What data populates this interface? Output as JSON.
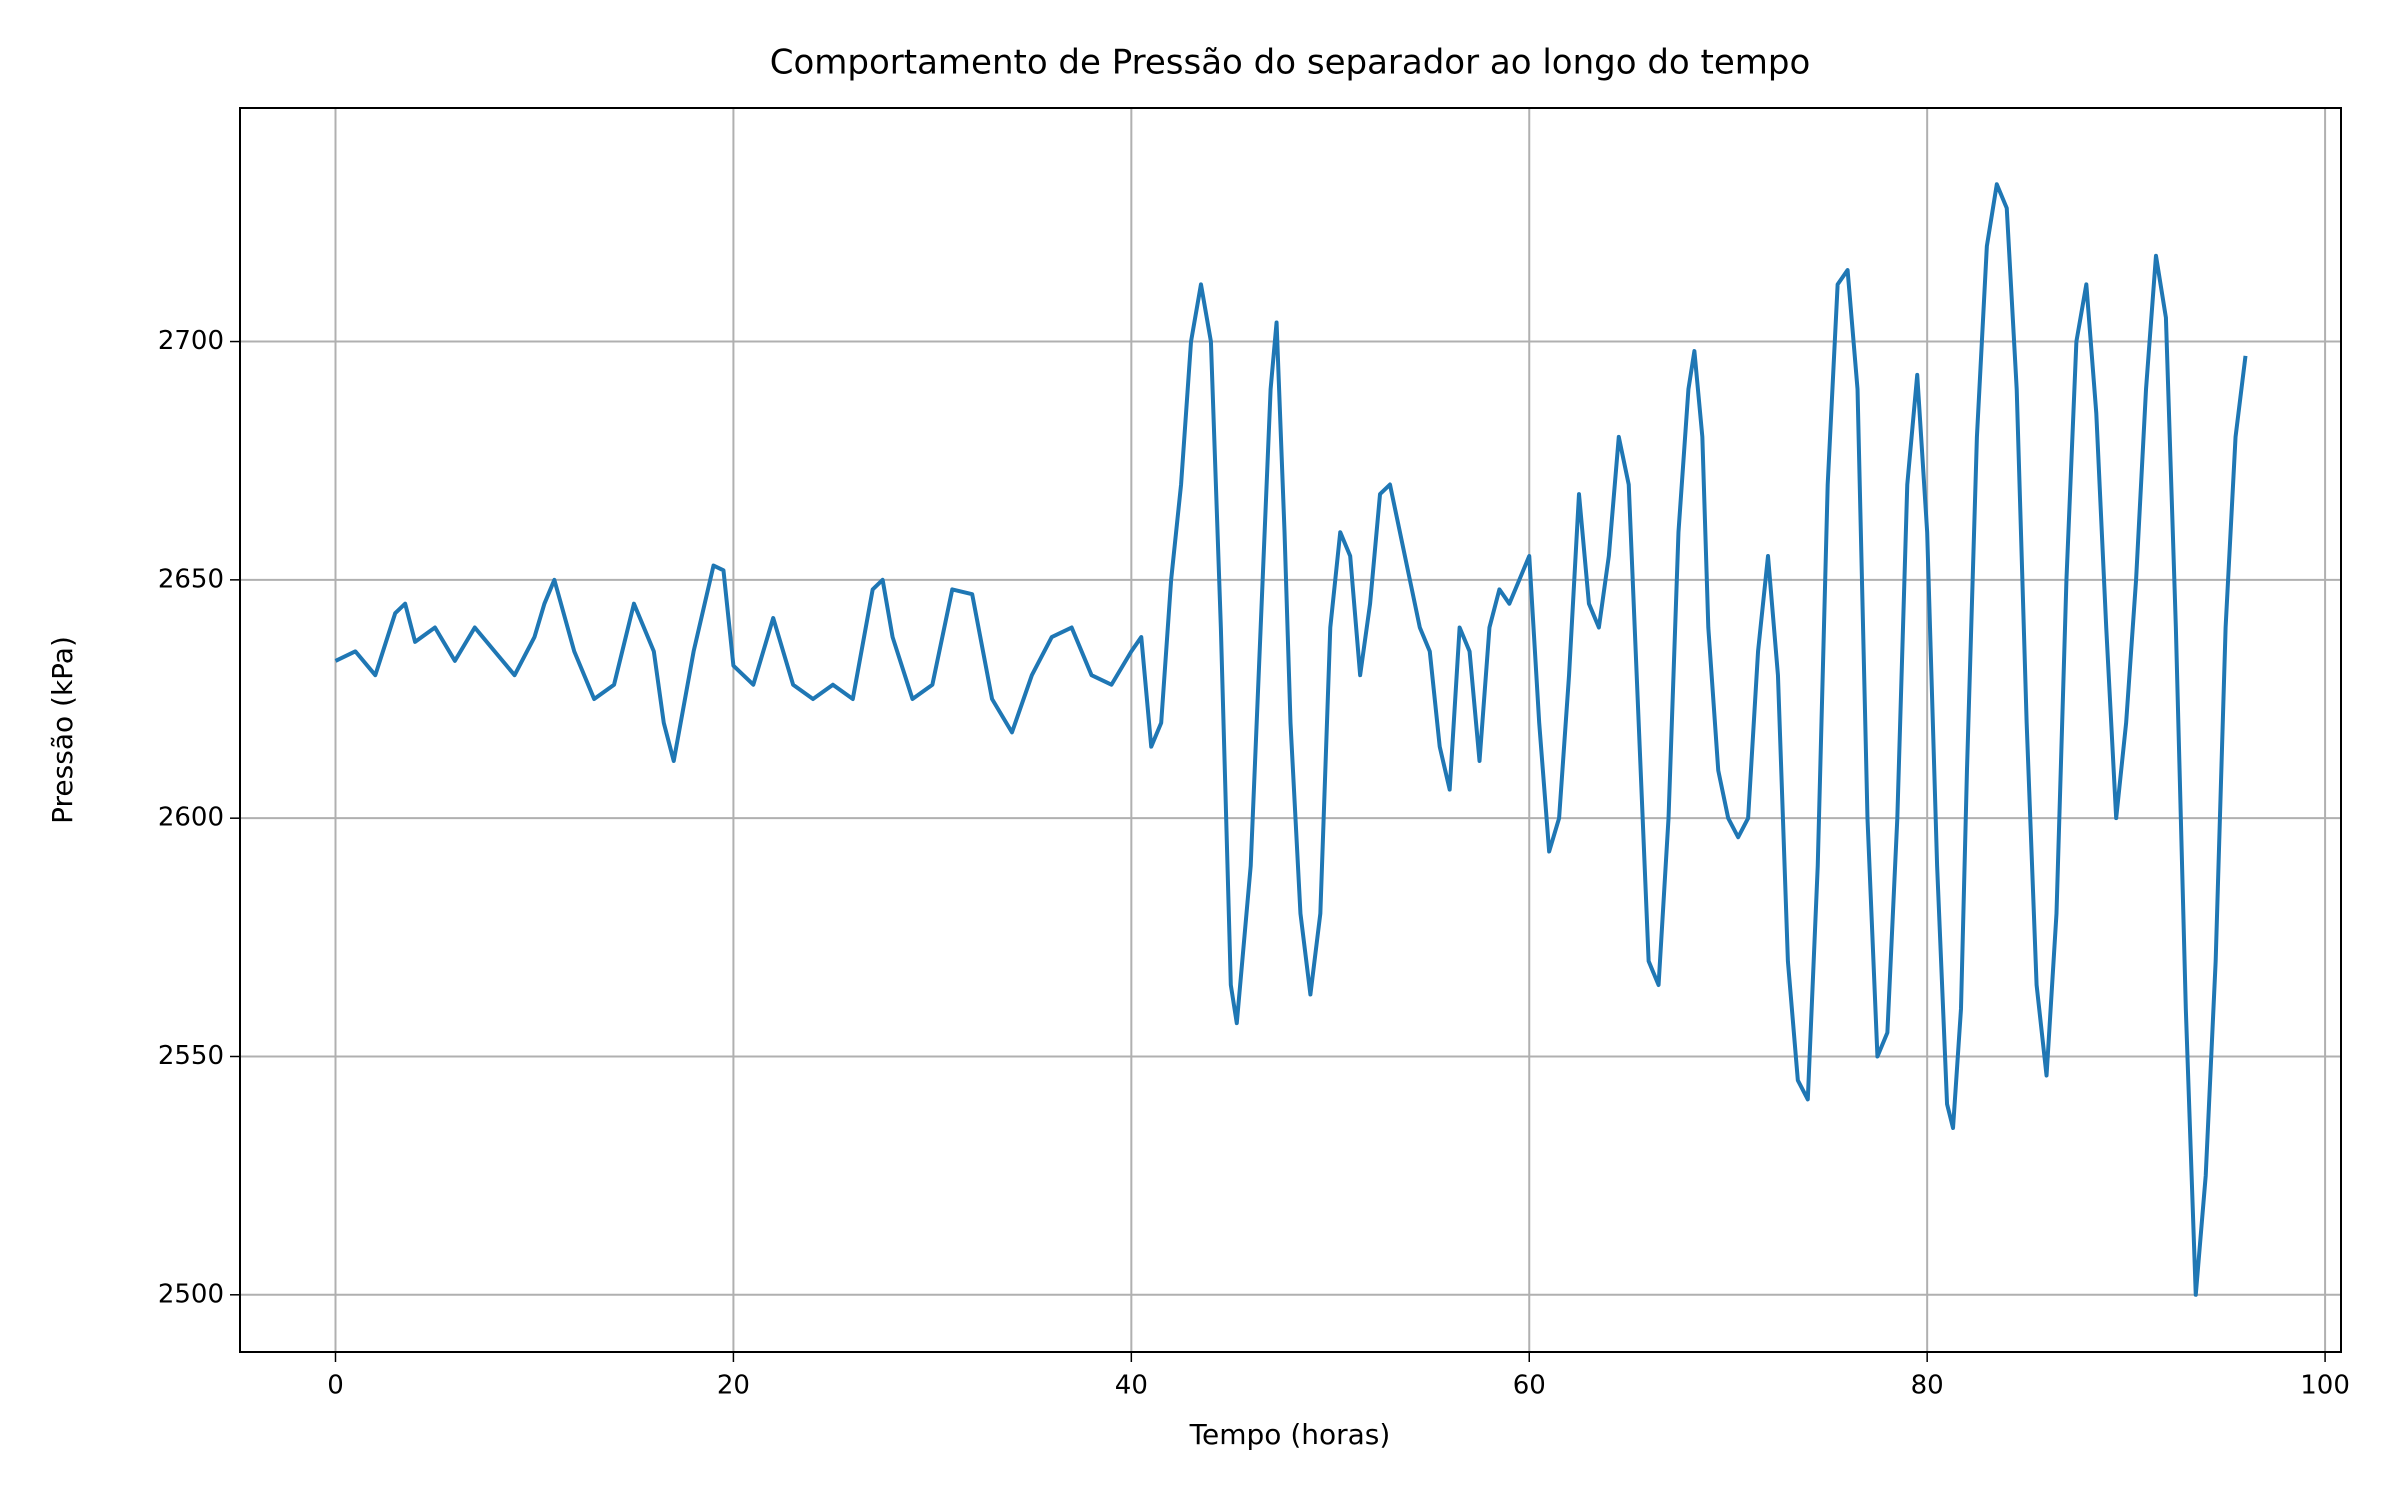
{
  "chart_data": {
    "type": "line",
    "title": "Comportamento de Pressão do separador ao longo do tempo",
    "x_label": "Tempo (horas)",
    "y_label": "Pressão (kPa)",
    "x": [
      0,
      1,
      2,
      3,
      3.5,
      4,
      5,
      6,
      7,
      8,
      9,
      10,
      10.5,
      11,
      12,
      13,
      14,
      15,
      16,
      16.5,
      17,
      18,
      19,
      19.5,
      20,
      21,
      22,
      23,
      24,
      25,
      26,
      27,
      27.5,
      28,
      29,
      30,
      31,
      32,
      33,
      34,
      35,
      36,
      37,
      38,
      39,
      40,
      40.5,
      41,
      41.5,
      42,
      42.5,
      43,
      43.5,
      44,
      44.5,
      45,
      45.3,
      46,
      46.5,
      47,
      47.3,
      47.7,
      48,
      48.5,
      49,
      49.5,
      50,
      50.5,
      51,
      51.5,
      52,
      52.5,
      53,
      53.5,
      54,
      54.5,
      55,
      55.5,
      56,
      56.5,
      57,
      57.5,
      58,
      58.5,
      59,
      59.5,
      60,
      60.5,
      61,
      61.5,
      62,
      62.5,
      63,
      63.5,
      64,
      64.5,
      65,
      65.5,
      66,
      66.5,
      67,
      67.5,
      68,
      68.3,
      68.7,
      69,
      69.5,
      70,
      70.5,
      71,
      71.5,
      72,
      72.5,
      73,
      73.5,
      74,
      74.5,
      75,
      75.5,
      76,
      76.5,
      77,
      77.5,
      78,
      78.5,
      79,
      79.5,
      80,
      80.5,
      81,
      81.3,
      81.7,
      82,
      82.5,
      83,
      83.5,
      84,
      84.5,
      85,
      85.5,
      86,
      86.5,
      87,
      87.5,
      88,
      88.5,
      89,
      89.5,
      90,
      90.5,
      91,
      91.5,
      92,
      92.5,
      93,
      93.5,
      94,
      94.5,
      95,
      95.5,
      96
    ],
    "series": [
      {
        "name": "Pressão",
        "color": "#1f77b4",
        "values": [
          2633,
          2635,
          2630,
          2643,
          2645,
          2637,
          2640,
          2633,
          2640,
          2635,
          2630,
          2638,
          2645,
          2650,
          2635,
          2625,
          2628,
          2645,
          2635,
          2620,
          2612,
          2635,
          2653,
          2652,
          2632,
          2628,
          2642,
          2628,
          2625,
          2628,
          2625,
          2648,
          2650,
          2638,
          2625,
          2628,
          2648,
          2647,
          2625,
          2618,
          2630,
          2638,
          2640,
          2630,
          2628,
          2635,
          2638,
          2615,
          2620,
          2650,
          2670,
          2700,
          2712,
          2700,
          2640,
          2565,
          2557,
          2590,
          2640,
          2690,
          2704,
          2660,
          2620,
          2580,
          2563,
          2580,
          2640,
          2660,
          2655,
          2630,
          2645,
          2668,
          2670,
          2660,
          2650,
          2640,
          2635,
          2615,
          2606,
          2640,
          2635,
          2612,
          2640,
          2648,
          2645,
          2650,
          2655,
          2620,
          2593,
          2600,
          2630,
          2668,
          2645,
          2640,
          2655,
          2680,
          2670,
          2620,
          2570,
          2565,
          2600,
          2660,
          2690,
          2698,
          2680,
          2640,
          2610,
          2600,
          2596,
          2600,
          2635,
          2655,
          2630,
          2570,
          2545,
          2541,
          2590,
          2670,
          2712,
          2715,
          2690,
          2600,
          2550,
          2555,
          2600,
          2670,
          2693,
          2660,
          2590,
          2540,
          2535,
          2560,
          2610,
          2680,
          2720,
          2733,
          2728,
          2690,
          2620,
          2565,
          2546,
          2580,
          2650,
          2700,
          2712,
          2685,
          2640,
          2600,
          2620,
          2650,
          2690,
          2718,
          2705,
          2640,
          2560,
          2500,
          2525,
          2570,
          2640,
          2680,
          2697
        ]
      }
    ],
    "xlim": [
      -4.8,
      100.8
    ],
    "ylim": [
      2488,
      2749
    ],
    "xticks": [
      0,
      20,
      40,
      60,
      80,
      100
    ],
    "yticks": [
      2500,
      2550,
      2600,
      2650,
      2700
    ],
    "grid": true
  }
}
